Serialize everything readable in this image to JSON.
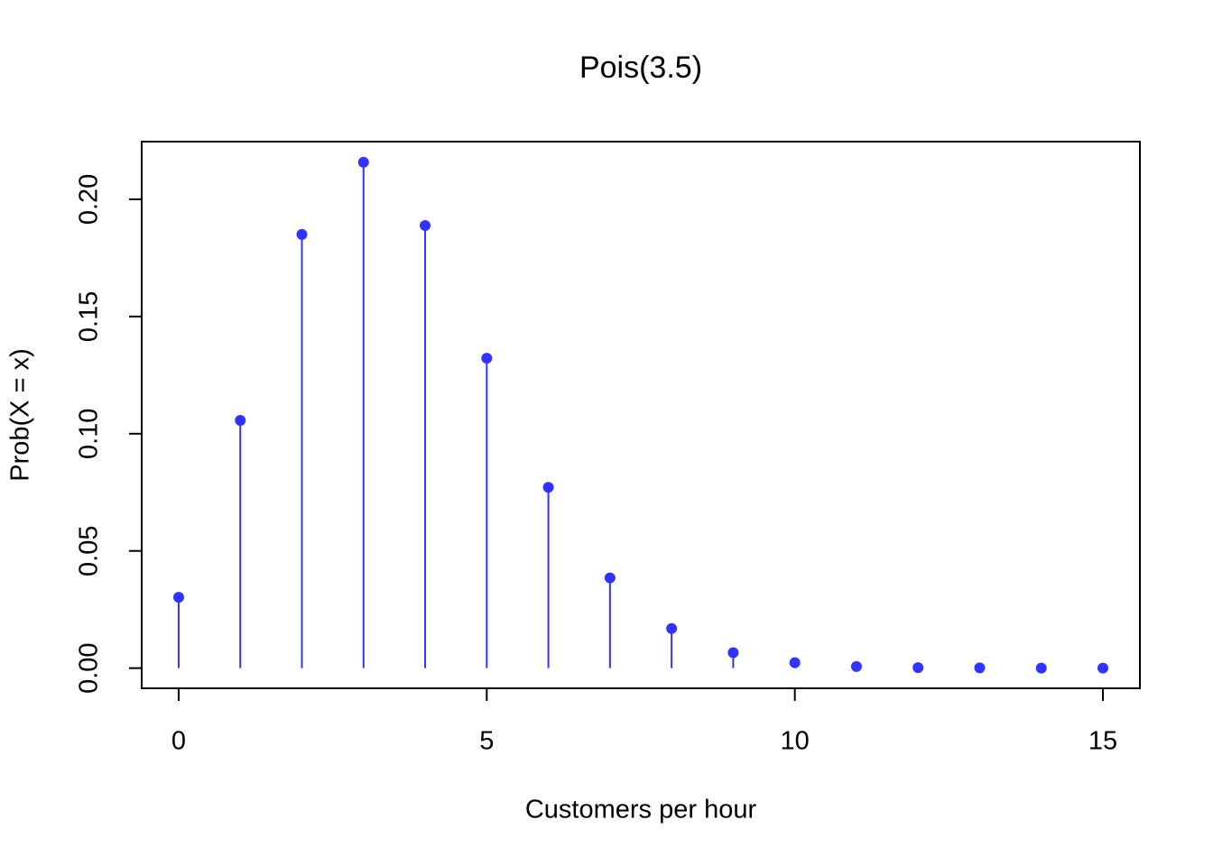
{
  "chart_data": {
    "type": "stem",
    "title": "Pois(3.5)",
    "x_label": "Customers per hour",
    "y_label": "Prob(X = x)",
    "x": [
      0,
      1,
      2,
      3,
      4,
      5,
      6,
      7,
      8,
      9,
      10,
      11,
      12,
      13,
      14,
      15
    ],
    "values": [
      0.0302,
      0.1057,
      0.185,
      0.2158,
      0.1888,
      0.1322,
      0.0771,
      0.0385,
      0.0169,
      0.0066,
      0.0023,
      0.0007,
      0.0002,
      0.0001,
      0.0,
      0.0
    ],
    "color": "#3333ff",
    "xlim": [
      -0.6,
      15.6
    ],
    "ylim": [
      -0.0086,
      0.2246
    ],
    "xticks": [
      0,
      5,
      10,
      15
    ],
    "yticks": [
      {
        "value": 0,
        "label": "0.00"
      },
      0.05,
      {
        "value": 0.1,
        "label": "0.10"
      },
      0.15,
      {
        "value": 0.2,
        "label": "0.20"
      }
    ]
  }
}
